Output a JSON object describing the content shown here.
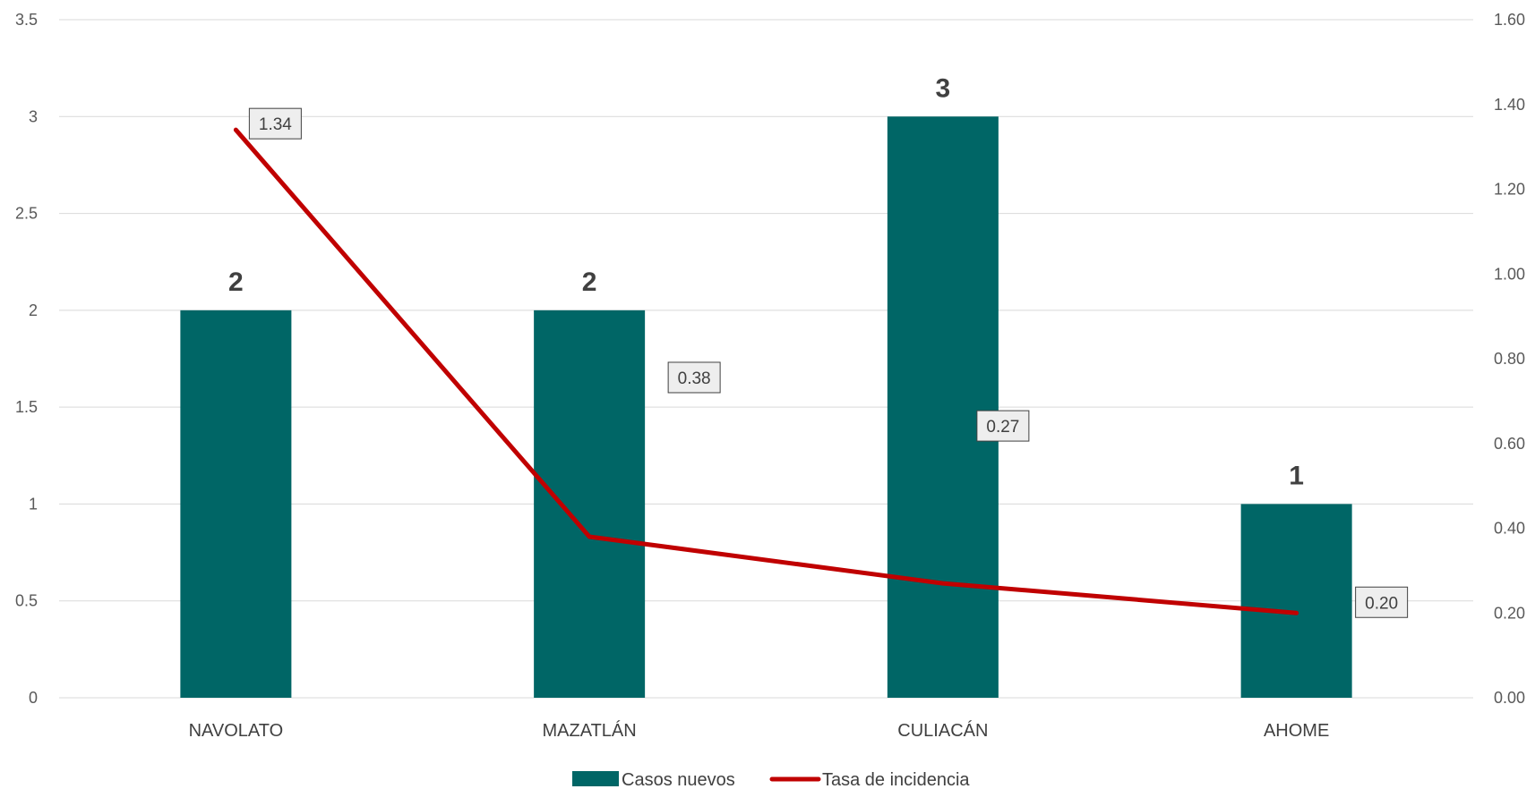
{
  "chart_data": {
    "type": "bar",
    "categories": [
      "NAVOLATO",
      "MAZATLÁN",
      "CULIACÁN",
      "AHOME"
    ],
    "series": [
      {
        "name": "Casos nuevos",
        "type": "bar",
        "axis": "left",
        "values": [
          2,
          2,
          3,
          1
        ],
        "color": "#006666",
        "labels": [
          "2",
          "2",
          "3",
          "1"
        ]
      },
      {
        "name": "Tasa de incidencia",
        "type": "line",
        "axis": "right",
        "values": [
          1.34,
          0.38,
          0.27,
          0.2
        ],
        "color": "#C00000",
        "labels": [
          "1.34",
          "0.38",
          "0.27",
          "0.20"
        ]
      }
    ],
    "y_left": {
      "lim": [
        0,
        3.5
      ],
      "ticks": [
        "0",
        "0.5",
        "1",
        "1.5",
        "2",
        "2.5",
        "3",
        "3.5"
      ]
    },
    "y_right": {
      "lim": [
        0,
        1.6
      ],
      "ticks": [
        "0.00",
        "0.20",
        "0.40",
        "0.60",
        "0.80",
        "1.00",
        "1.20",
        "1.40",
        "1.60"
      ]
    },
    "grid": true,
    "legend_position": "bottom"
  }
}
